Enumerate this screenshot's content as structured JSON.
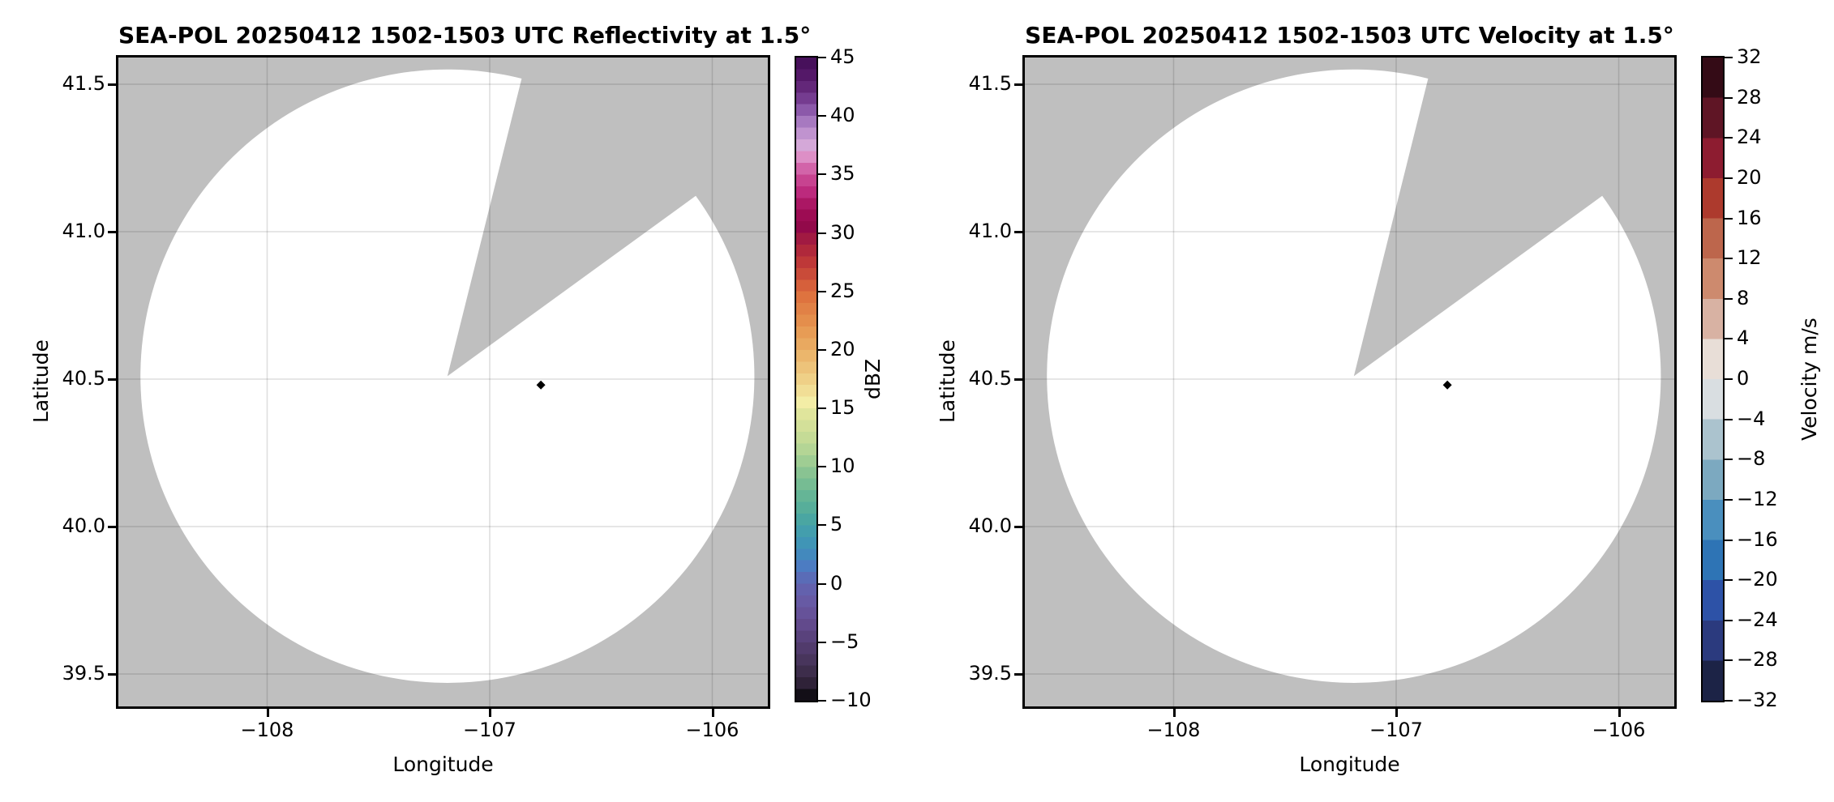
{
  "figure": {
    "background": "#ffffff"
  },
  "colors": {
    "plot_background_gray": "#bfbfbf",
    "scan_area_white": "#ffffff",
    "grid_line": "rgba(0,0,0,0.13)",
    "spine": "#000000",
    "text": "#000000",
    "marker": "#000000"
  },
  "shared": {
    "xlabel": "Longitude",
    "ylabel": "Latitude",
    "x_ticks": [
      {
        "value": -108,
        "label": "−108"
      },
      {
        "value": -107,
        "label": "−107"
      },
      {
        "value": -106,
        "label": "−106"
      }
    ],
    "y_ticks": [
      {
        "value": 41.5,
        "label": "41.5"
      },
      {
        "value": 41.0,
        "label": "41.0"
      },
      {
        "value": 40.5,
        "label": "40.5"
      },
      {
        "value": 40.0,
        "label": "40.0"
      },
      {
        "value": 39.5,
        "label": "39.5"
      }
    ]
  },
  "panels": [
    {
      "title": "SEA-POL 20250412 1502-1503 UTC Reflectivity at 1.5°",
      "field": "Reflectivity",
      "colorbar": {
        "label": "dBZ",
        "min": -10,
        "max": 45,
        "step": 1,
        "ticks": [
          {
            "v": 45,
            "label": "45"
          },
          {
            "v": 40,
            "label": "40"
          },
          {
            "v": 35,
            "label": "35"
          },
          {
            "v": 30,
            "label": "30"
          },
          {
            "v": 25,
            "label": "25"
          },
          {
            "v": 20,
            "label": "20"
          },
          {
            "v": 15,
            "label": "15"
          },
          {
            "v": 10,
            "label": "10"
          },
          {
            "v": 5,
            "label": "5"
          },
          {
            "v": 0,
            "label": "0"
          },
          {
            "v": -5,
            "label": "−5"
          },
          {
            "v": -10,
            "label": "−10"
          }
        ],
        "anchors": [
          {
            "v": 45,
            "c": "#400c55"
          },
          {
            "v": 43,
            "c": "#5a1c6e"
          },
          {
            "v": 41,
            "c": "#7e469b"
          },
          {
            "v": 40,
            "c": "#9a6cb8"
          },
          {
            "v": 38.5,
            "c": "#c093cf"
          },
          {
            "v": 37.5,
            "c": "#d4a8d8"
          },
          {
            "v": 36.5,
            "c": "#dd8fc6"
          },
          {
            "v": 35,
            "c": "#cd4f9a"
          },
          {
            "v": 33.5,
            "c": "#bc2a7d"
          },
          {
            "v": 32,
            "c": "#a30d58"
          },
          {
            "v": 30.5,
            "c": "#92094a"
          },
          {
            "v": 29.5,
            "c": "#a11a42"
          },
          {
            "v": 28,
            "c": "#b82f38"
          },
          {
            "v": 26,
            "c": "#cf5439"
          },
          {
            "v": 25,
            "c": "#dc6c3c"
          },
          {
            "v": 22,
            "c": "#e6954f"
          },
          {
            "v": 20,
            "c": "#eaaf65"
          },
          {
            "v": 17,
            "c": "#f0d78e"
          },
          {
            "v": 15.5,
            "c": "#f3eda6"
          },
          {
            "v": 15,
            "c": "#e6e79d"
          },
          {
            "v": 13,
            "c": "#cdde97"
          },
          {
            "v": 11,
            "c": "#abd294"
          },
          {
            "v": 10,
            "c": "#93c791"
          },
          {
            "v": 8,
            "c": "#6cb894"
          },
          {
            "v": 6,
            "c": "#50aa9c"
          },
          {
            "v": 5,
            "c": "#44a2a8"
          },
          {
            "v": 3,
            "c": "#3f90bb"
          },
          {
            "v": 1.5,
            "c": "#4c7cc2"
          },
          {
            "v": 0,
            "c": "#6164b1"
          },
          {
            "v": -1.5,
            "c": "#675aa4"
          },
          {
            "v": -3,
            "c": "#664e94"
          },
          {
            "v": -5,
            "c": "#553e74"
          },
          {
            "v": -7,
            "c": "#443254"
          },
          {
            "v": -8.5,
            "c": "#2f2238"
          },
          {
            "v": -10,
            "c": "#050507"
          }
        ]
      }
    },
    {
      "title": "SEA-POL 20250412 1502-1503 UTC Velocity at 1.5°",
      "field": "Velocity",
      "colorbar": {
        "label": "Velocity m/s",
        "min": -32,
        "max": 32,
        "ticks": [
          {
            "v": 32,
            "label": "32"
          },
          {
            "v": 28,
            "label": "28"
          },
          {
            "v": 24,
            "label": "24"
          },
          {
            "v": 20,
            "label": "20"
          },
          {
            "v": 16,
            "label": "16"
          },
          {
            "v": 12,
            "label": "12"
          },
          {
            "v": 8,
            "label": "8"
          },
          {
            "v": 4,
            "label": "4"
          },
          {
            "v": 0,
            "label": "0"
          },
          {
            "v": -4,
            "label": "−4"
          },
          {
            "v": -8,
            "label": "−8"
          },
          {
            "v": -12,
            "label": "−12"
          },
          {
            "v": -16,
            "label": "−16"
          },
          {
            "v": -20,
            "label": "−20"
          },
          {
            "v": -24,
            "label": "−24"
          },
          {
            "v": -28,
            "label": "−28"
          },
          {
            "v": -32,
            "label": "−32"
          }
        ],
        "segments": [
          {
            "hi": 32,
            "lo": 28,
            "c": "#340b16"
          },
          {
            "hi": 28,
            "lo": 24,
            "c": "#5f1525"
          },
          {
            "hi": 24,
            "lo": 20,
            "c": "#8d1c30"
          },
          {
            "hi": 20,
            "lo": 16,
            "c": "#ad3a2d"
          },
          {
            "hi": 16,
            "lo": 12,
            "c": "#bd664c"
          },
          {
            "hi": 12,
            "lo": 8,
            "c": "#cd8a6e"
          },
          {
            "hi": 8,
            "lo": 4,
            "c": "#d8b2a3"
          },
          {
            "hi": 4,
            "lo": 0,
            "c": "#e8ded7"
          },
          {
            "hi": 0,
            "lo": -4,
            "c": "#d9dee1"
          },
          {
            "hi": -4,
            "lo": -8,
            "c": "#abc3ce"
          },
          {
            "hi": -8,
            "lo": -12,
            "c": "#7ca9c0"
          },
          {
            "hi": -12,
            "lo": -16,
            "c": "#4a8fbe"
          },
          {
            "hi": -16,
            "lo": -20,
            "c": "#2e74b5"
          },
          {
            "hi": -20,
            "lo": -24,
            "c": "#2d52a7"
          },
          {
            "hi": -24,
            "lo": -28,
            "c": "#2b3a7e"
          },
          {
            "hi": -28,
            "lo": -32,
            "c": "#1c2346"
          }
        ]
      }
    }
  ],
  "chart_data": {
    "type": "radar_ppi",
    "panels": [
      {
        "field": "reflectivity",
        "title": "SEA-POL 20250412 1502-1503 UTC Reflectivity at 1.5°",
        "colorbar_label": "dBZ",
        "color_range": [
          -10,
          45
        ],
        "colorbar_tick_interval": 5,
        "echo_data_points": []
      },
      {
        "field": "velocity",
        "title": "SEA-POL 20250412 1502-1503 UTC Velocity at 1.5°",
        "colorbar_label": "Velocity m/s",
        "color_range": [
          -32,
          32
        ],
        "colorbar_tick_interval": 4,
        "echo_data_points": []
      }
    ],
    "axes": {
      "xlabel": "Longitude",
      "ylabel": "Latitude",
      "x_ticks": [
        -108,
        -107,
        -106
      ],
      "y_ticks": [
        41.5,
        41.0,
        40.5,
        40.0,
        39.5
      ],
      "x_range": [
        -108.67,
        -105.75
      ],
      "y_range": [
        39.39,
        41.59
      ],
      "grid": true,
      "aspect": "equal-map-degrees"
    },
    "radar": {
      "center_lon": -107.19,
      "center_lat": 40.51,
      "max_range_deg_lat": 1.04,
      "blocked_sector_azimuth_deg": [
        14,
        54
      ],
      "coverage_fill": "#ffffff",
      "no_coverage_fill": "#bfbfbf"
    },
    "site_marker": {
      "lon": -106.77,
      "lat": 40.48,
      "shape": "diamond",
      "color": "#000000"
    },
    "notes": "Both PPI scans are echo-free: the white disc is the scanned area (with a blocked wedge to the NNE rendered gray), and the only plotted feature is a small black diamond site marker in each panel."
  }
}
